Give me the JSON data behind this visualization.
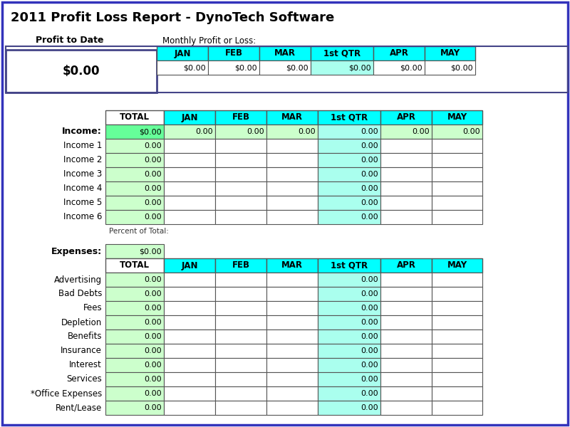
{
  "title": "2011 Profit Loss Report - DynoTech Software",
  "bg_color": "#ffffff",
  "cyan": "#00FFFF",
  "light_green": "#CCFFCC",
  "medium_green": "#66FF99",
  "teal_qtr": "#AAFFEE",
  "white": "#FFFFFF",
  "dark_border": "#555555",
  "blue_border": "#3333BB",
  "profit_label": "Profit to Date",
  "monthly_label": "Monthly Profit or Loss:",
  "profit_value": "$0.00",
  "columns": [
    "JAN",
    "FEB",
    "MAR",
    "1st QTR",
    "APR",
    "MAY"
  ],
  "profit_row_values": [
    "$0.00",
    "$0.00",
    "$0.00",
    "$0.00",
    "$0.00",
    "$0.00"
  ],
  "income_label": "Income:",
  "income_cols": [
    "TOTAL",
    "JAN",
    "FEB",
    "MAR",
    "1st QTR",
    "APR",
    "MAY"
  ],
  "income_header_values": [
    "$0.00",
    "0.00",
    "0.00",
    "0.00",
    "0.00",
    "0.00",
    "0.00"
  ],
  "income_rows": [
    "Income 1",
    "Income 2",
    "Income 3",
    "Income 4",
    "Income 5",
    "Income 6"
  ],
  "percent_label": "Percent of Total:",
  "expenses_label": "Expenses:",
  "expenses_total_value": "$0.00",
  "expense_rows": [
    "Advertising",
    "Bad Debts",
    "Fees",
    "Depletion",
    "Benefits",
    "Insurance",
    "Interest",
    "Services",
    "*Office Expenses",
    "Rent/Lease"
  ]
}
